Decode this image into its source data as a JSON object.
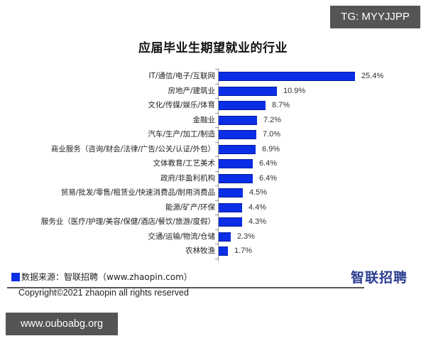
{
  "overlay": {
    "tg_badge": "TG: MYYJJPP",
    "site_badge": "www.ouboabg.org"
  },
  "chart_data": {
    "type": "bar",
    "orientation": "horizontal",
    "title": "应届毕业生期望就业的行业",
    "xlabel": "",
    "ylabel": "",
    "unit": "%",
    "grid": false,
    "legend": false,
    "xlim": [
      0,
      25.4
    ],
    "categories": [
      "IT/通信/电子/互联网",
      "房地产/建筑业",
      "文化/传媒/娱乐/体育",
      "金融业",
      "汽车/生产/加工/制造",
      "商业服务（咨询/财会/法律/广告/公关/认证/外包）",
      "文体教育/工艺美术",
      "政府/非盈利机构",
      "贸易/批发/零售/租赁业/快速消费品/耐用消费品",
      "能源/矿产/环保",
      "服务业（医疗/护理/美容/保健/酒店/餐饮/旅游/度假）",
      "交通/运输/物流/仓储",
      "农林牧渔"
    ],
    "values": [
      25.4,
      10.9,
      8.7,
      7.2,
      7.0,
      6.9,
      6.4,
      6.4,
      4.5,
      4.4,
      4.3,
      2.3,
      1.7
    ],
    "value_labels": [
      "25.4%",
      "10.9%",
      "8.7%",
      "7.2%",
      "7.0%",
      "6.9%",
      "6.4%",
      "6.4%",
      "4.5%",
      "4.4%",
      "4.3%",
      "2.3%",
      "1.7%"
    ],
    "bar_color": "#0a2ee6"
  },
  "footer": {
    "source": "数据来源：智联招聘（www.zhaopin.com）",
    "logo_text": "智联招聘",
    "copyright": "Copyright©2021 zhaopin all rights reserved"
  }
}
